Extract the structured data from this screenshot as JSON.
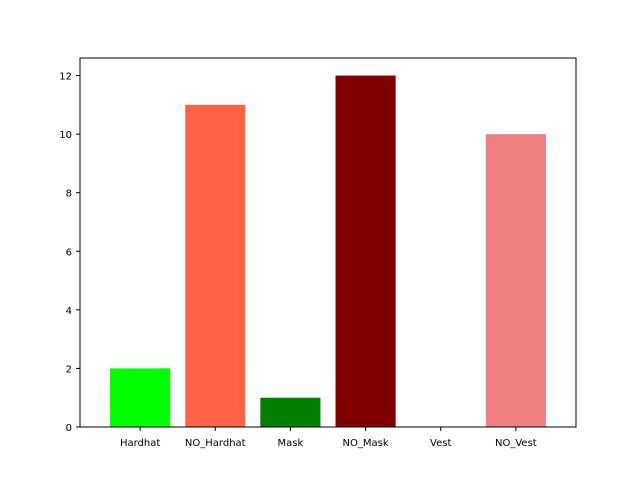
{
  "chart_data": {
    "type": "bar",
    "categories": [
      "Hardhat",
      "NO_Hardhat",
      "Mask",
      "NO_Mask",
      "Vest",
      "NO_Vest"
    ],
    "values": [
      2,
      11,
      1,
      12,
      0,
      10
    ],
    "colors": [
      "#00ff00",
      "#ff6347",
      "#008000",
      "#800000",
      "#0000ff",
      "#f08080"
    ],
    "yticks": [
      0,
      2,
      4,
      6,
      8,
      10,
      12
    ],
    "ylim": [
      0,
      12.6
    ],
    "title": "",
    "xlabel": "",
    "ylabel": "",
    "grid": false,
    "legend": "none"
  }
}
